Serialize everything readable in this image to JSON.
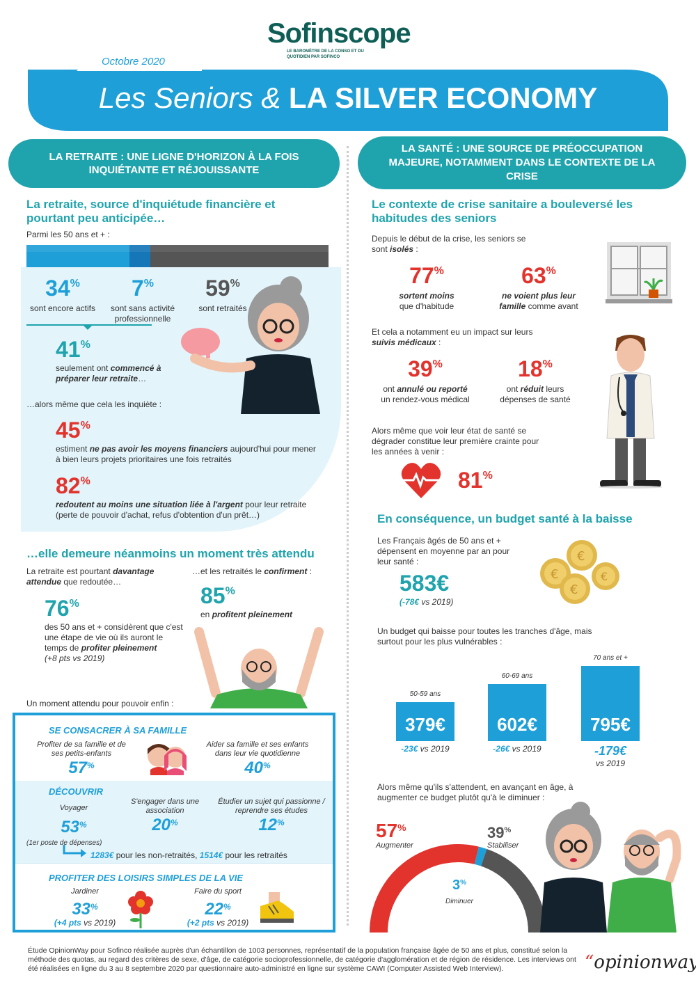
{
  "header": {
    "brand": "Sofinscope",
    "brand_sub": "LE BAROMÈTRE DE LA CONSO ET DU QUOTIDIEN PAR SOFINCO",
    "date": "Octobre 2020",
    "title_part1": "Les Seniors &",
    "title_part2": "LA SILVER ECONOMY"
  },
  "left": {
    "section_title": "LA RETRAITE : UNE LIGNE D'HORIZON À LA FOIS INQUIÉTANTE ET RÉJOUISSANTE",
    "sub1_title": "La retraite, source d'inquiétude financière et pourtant peu anticipée…",
    "intro": "Parmi les 50 ans et + :",
    "bar": {
      "actifs": 34,
      "sans_activite": 7,
      "retraites": 59
    },
    "stat_actifs": {
      "value": "34",
      "unit": "%",
      "label": "sont encore actifs"
    },
    "stat_sans": {
      "value": "7",
      "unit": "%",
      "label": "sont sans activité professionnelle"
    },
    "stat_retraites": {
      "value": "59",
      "unit": "%",
      "label": "sont retraités"
    },
    "stat41": {
      "value": "41",
      "unit": "%",
      "label_a": "seulement ont ",
      "label_b": "commencé à préparer leur retraite",
      "label_c": "…"
    },
    "inquiete": "…alors même que cela les inquiète :",
    "stat45": {
      "value": "45",
      "unit": "%",
      "label_a": "estiment ",
      "label_b": "ne pas avoir les moyens financiers",
      "label_c": " aujourd'hui pour mener à bien leurs projets prioritaires une fois retraités"
    },
    "stat82": {
      "value": "82",
      "unit": "%",
      "label_b": "redoutent au moins une situation liée à l'argent",
      "label_c": " pour leur retraite (perte de pouvoir d'achat, refus d'obtention d'un prêt…)"
    },
    "sub2_title": "…elle demeure néanmoins un moment très attendu",
    "attendue_a": "La retraite est pourtant ",
    "attendue_b": "davantage attendue",
    "attendue_c": " que redoutée…",
    "confirment_a": "…et les retraités le ",
    "confirment_b": "confirment",
    "confirment_c": " :",
    "stat76": {
      "value": "76",
      "unit": "%",
      "label_a": "des 50 ans et + considèrent que c'est une étape de vie où ils auront le temps de ",
      "label_b": "profiter pleinement",
      "evol": "(+8 pts vs 2019)"
    },
    "stat85": {
      "value": "85",
      "unit": "%",
      "label_a": "en ",
      "label_b": "profitent pleinement"
    },
    "moment": "Un moment attendu pour pouvoir enfin :",
    "box": {
      "famille_title": "SE CONSACRER À SA FAMILLE",
      "f1_label": "Profiter de sa famille et de ses petits-enfants",
      "f1_value": "57",
      "f1_unit": "%",
      "f2_label": "Aider sa famille et ses enfants dans leur vie quotidienne",
      "f2_value": "40",
      "f2_unit": "%",
      "decouvrir_title": "DÉCOUVRIR",
      "d1_label": "Voyager",
      "d1_value": "53",
      "d1_unit": "%",
      "d2_label": "S'engager dans une association",
      "d2_value": "20",
      "d2_unit": "%",
      "d3_label": "Étudier un sujet qui passionne / reprendre ses études",
      "d3_value": "12",
      "d3_unit": "%",
      "poste": "(1er poste de dépenses)",
      "depense_a": "1283€",
      "depense_b": " pour les non-retraités, ",
      "depense_c": "1514€",
      "depense_d": " pour les retraités",
      "loisirs_title": "PROFITER DES LOISIRS SIMPLES DE LA VIE",
      "l1_label": "Jardiner",
      "l1_value": "33",
      "l1_unit": "%",
      "l1_evol_a": "(+4 pts",
      "l1_evol_b": " vs 2019)",
      "l2_label": "Faire du sport",
      "l2_value": "22",
      "l2_unit": "%",
      "l2_evol_a": "(+2 pts",
      "l2_evol_b": " vs 2019)"
    }
  },
  "right": {
    "section_title": "LA SANTÉ : UNE SOURCE DE PRÉOCCUPATION MAJEURE, NOTAMMENT DANS LE CONTEXTE DE LA CRISE",
    "sub1_title": "Le contexte de crise sanitaire a bouleversé les habitudes des seniors",
    "isoles_a": "Depuis le début de la crise, les seniors se sont ",
    "isoles_b": "isolés",
    "isoles_c": " :",
    "stat77": {
      "value": "77",
      "unit": "%",
      "label_b": "sortent moins",
      "label_c": "que d'habitude"
    },
    "stat63": {
      "value": "63",
      "unit": "%",
      "label_b": "ne voient plus leur famille",
      "label_c": " comme avant"
    },
    "suivis_a": "Et cela a notamment eu un impact sur leurs ",
    "suivis_b": "suivis médicaux",
    "suivis_c": " :",
    "stat39": {
      "value": "39",
      "unit": "%",
      "label_a": "ont ",
      "label_b": "annulé ou reporté",
      "label_c": "un rendez-vous médical"
    },
    "stat18": {
      "value": "18",
      "unit": "%",
      "label_a": "ont ",
      "label_b": "réduit",
      "label_c": " leurs dépenses de santé"
    },
    "crainte": "Alors même que voir leur état de santé se dégrader constitue leur première crainte pour les années à venir :",
    "stat81": {
      "value": "81",
      "unit": "%"
    },
    "sub2_title": "En conséquence, un budget santé à la baisse",
    "depensent": "Les Français âgés de 50 ans et + dépensent en moyenne par an pour leur santé :",
    "budget": {
      "value": "583€",
      "evol_a": "(-78€",
      "evol_b": " vs 2019)"
    },
    "tranches_intro": "Un budget qui baisse pour toutes les tranches d'âge, mais surtout pour les plus vulnérables :",
    "tranches": [
      {
        "age": "50-59 ans",
        "value": "379€",
        "evol": "-23€",
        "vs": " vs 2019",
        "amount": 379
      },
      {
        "age": "60-69 ans",
        "value": "602€",
        "evol": "-26€",
        "vs": " vs 2019",
        "amount": 602
      },
      {
        "age": "70 ans et +",
        "value": "795€",
        "evol": "-179€",
        "vs": "vs 2019",
        "amount": 795
      }
    ],
    "attendent": "Alors même qu'ils s'attendent, en avançant en âge, à augmenter ce budget plutôt qu'à le diminuer :",
    "gauge": {
      "augmenter": {
        "value": "57",
        "unit": "%",
        "label": "Augmenter",
        "pct": 57
      },
      "diminuer": {
        "value": "3",
        "unit": "%",
        "label": "Diminuer",
        "pct": 3
      },
      "stabiliser": {
        "value": "39",
        "unit": "%",
        "label": "Stabiliser",
        "pct": 39
      }
    }
  },
  "footer": {
    "text": "Étude OpinionWay pour Sofinco réalisée auprès d'un échantillon de 1003 personnes, représentatif de la population française âgée de 50 ans et plus, constitué selon la méthode des quotas, au regard des critères de sexe, d'âge, de catégorie socioprofessionnelle, de catégorie d'agglomération et de région de résidence. Les interviews ont été réalisées en ligne du 3 au 8 septembre 2020 par questionnaire auto-administré en ligne sur système CAWI (Computer Assisted Web Interview).",
    "logo": "opinionway"
  },
  "colors": {
    "teal": "#1fa3ad",
    "blue": "#1f9fd8",
    "red": "#e2332d",
    "grey": "#555555",
    "dark_green": "#0f5e56"
  }
}
